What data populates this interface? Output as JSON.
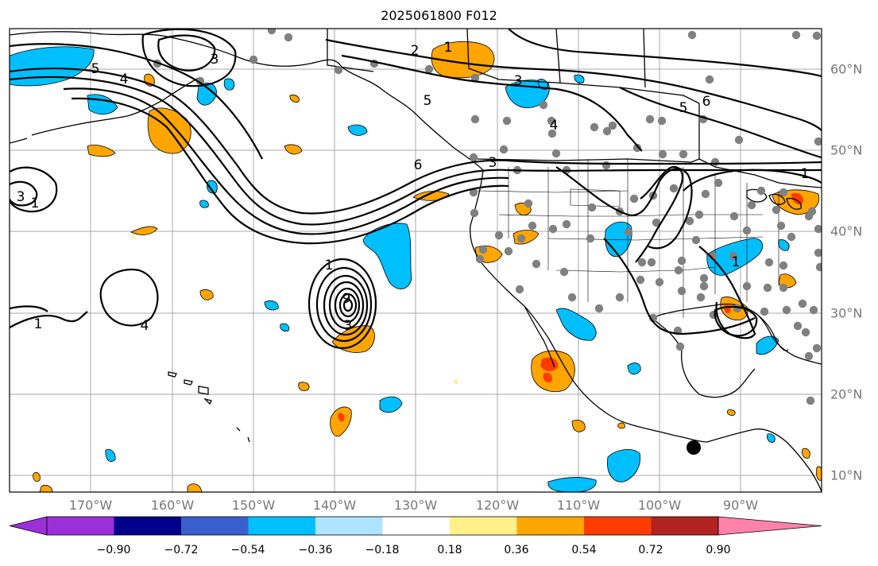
{
  "title": "2025061800 F012",
  "map": {
    "type": "weather-forecast-map",
    "region": "North Pacific / North America",
    "longitude_labels": [
      "170°W",
      "160°W",
      "150°W",
      "140°W",
      "130°W",
      "120°W",
      "110°W",
      "100°W",
      "90°W"
    ],
    "latitude_labels": [
      "10°N",
      "20°N",
      "30°N",
      "40°N",
      "50°N",
      "60°N"
    ],
    "contour_labels": [
      "5",
      "3",
      "4",
      "2",
      "1",
      "3",
      "5",
      "6",
      "4",
      "5",
      "6",
      "1",
      "3",
      "1",
      "4",
      "3",
      "1",
      "1",
      "9",
      "3",
      "1"
    ],
    "station_marker_color": "#808080",
    "land_outline_color": "#000000",
    "gridline_color": "#a9a9a9"
  },
  "colorbar": {
    "tick_labels": [
      "−0.90",
      "−0.72",
      "−0.54",
      "−0.36",
      "−0.18",
      "0.18",
      "0.36",
      "0.54",
      "0.72",
      "0.90"
    ],
    "colors": [
      "#9b30d9",
      "#00008b",
      "#3a5fcd",
      "#00bfff",
      "#aee4ff",
      "#ffffff",
      "#fff08a",
      "#ffa500",
      "#ff3c00",
      "#b22222",
      "#ff82ab"
    ]
  }
}
